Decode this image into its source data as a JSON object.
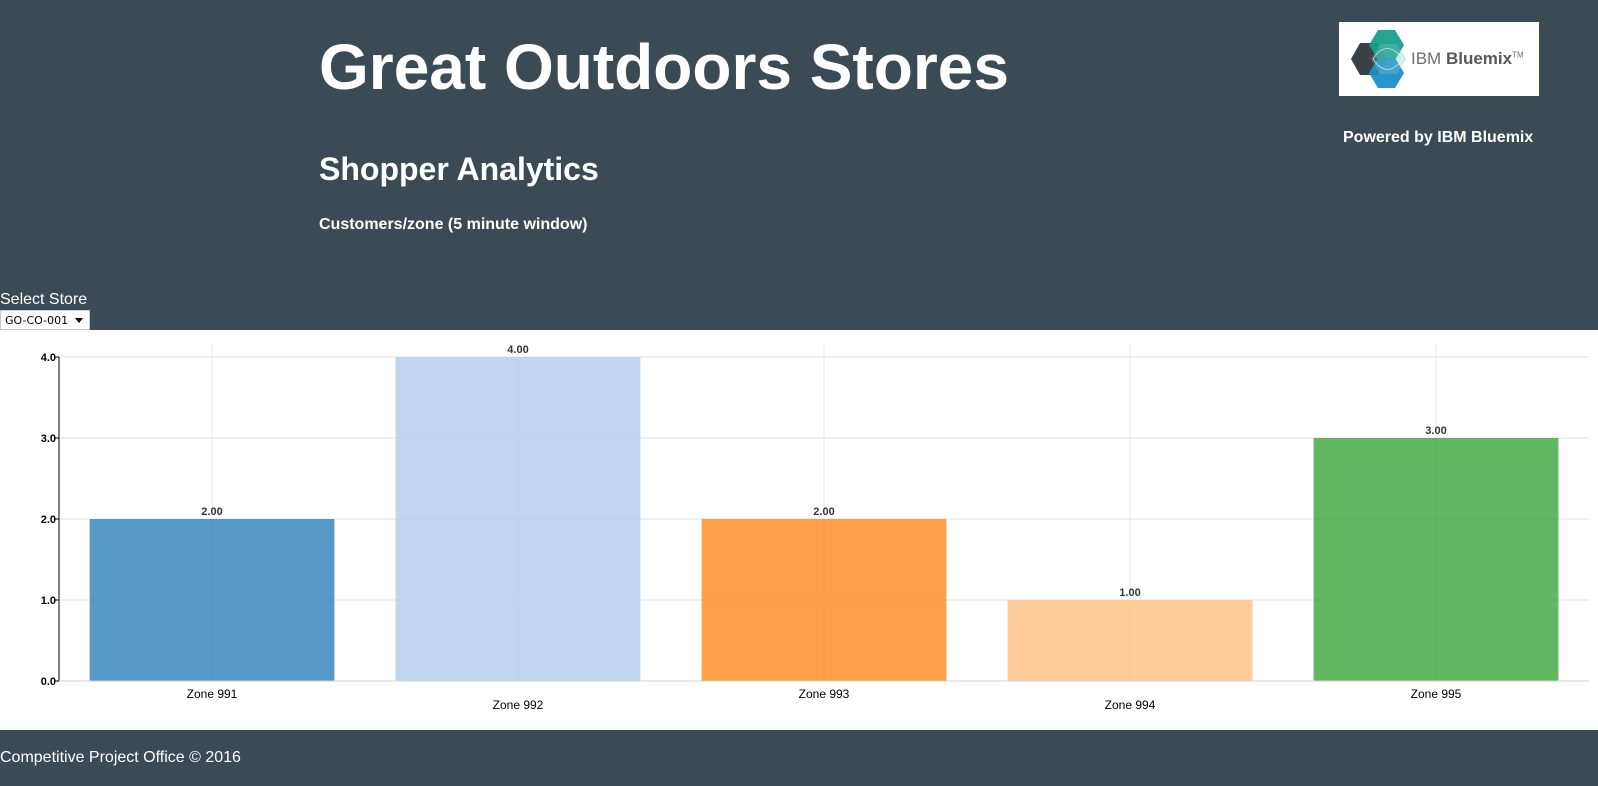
{
  "header": {
    "title": "Great Outdoors Stores",
    "subtitle": "Shopper Analytics",
    "window_label": "Customers/zone (5 minute window)",
    "powered_by": "Powered by IBM Bluemix",
    "logo": {
      "text_light": "IBM",
      "text_bold": "Bluemix",
      "trademark": "TM",
      "icon": "ibm-bluemix-hexagon-logo"
    }
  },
  "store_select": {
    "label": "Select Store",
    "value": "GO-CO-001"
  },
  "footer": {
    "text": "Competitive Project Office © 2016"
  },
  "colors": {
    "header_background": "#3a4b55",
    "series": [
      "#1f77b4",
      "#aec7e8",
      "#ff7f0e",
      "#ffbb78",
      "#2ca02c"
    ]
  },
  "chart_data": {
    "type": "bar",
    "categories": [
      "Zone 991",
      "Zone 992",
      "Zone 993",
      "Zone 994",
      "Zone 995"
    ],
    "values": [
      2,
      4,
      2,
      1,
      3
    ],
    "value_labels": [
      "2.00",
      "4.00",
      "2.00",
      "1.00",
      "3.00"
    ],
    "yticks": [
      "0.0",
      "1.0",
      "2.0",
      "3.0",
      "4.0"
    ],
    "ylim": [
      0,
      4
    ],
    "grid": true,
    "colors": [
      "#1f77b4",
      "#aec7e8",
      "#ff7f0e",
      "#ffbb78",
      "#2ca02c"
    ]
  }
}
